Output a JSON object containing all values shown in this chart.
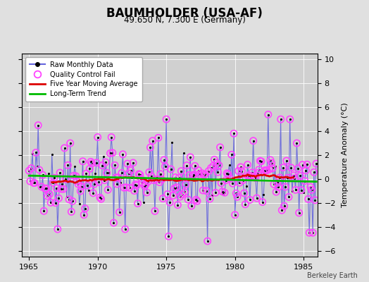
{
  "title": "BAUMHOLDER (USA-AF)",
  "subtitle": "49.650 N, 7.300 E (Germany)",
  "ylabel": "Temperature Anomaly (°C)",
  "credit": "Berkeley Earth",
  "xlim": [
    1964.5,
    1986.0
  ],
  "ylim": [
    -6.5,
    10.5
  ],
  "yticks": [
    -6,
    -4,
    -2,
    0,
    2,
    4,
    6,
    8,
    10
  ],
  "xticks": [
    1965,
    1970,
    1975,
    1980,
    1985
  ],
  "bg_color": "#e0e0e0",
  "plot_bg_color": "#d0d0d0",
  "raw_line_color": "#6666dd",
  "raw_marker_color": "#000000",
  "qc_fail_color": "#ff44ff",
  "moving_avg_color": "#dd0000",
  "trend_color": "#00bb00",
  "seed": 42,
  "n_months": 252,
  "start_year": 1965,
  "long_term_slope": -0.002,
  "long_term_intercept": 0.28
}
